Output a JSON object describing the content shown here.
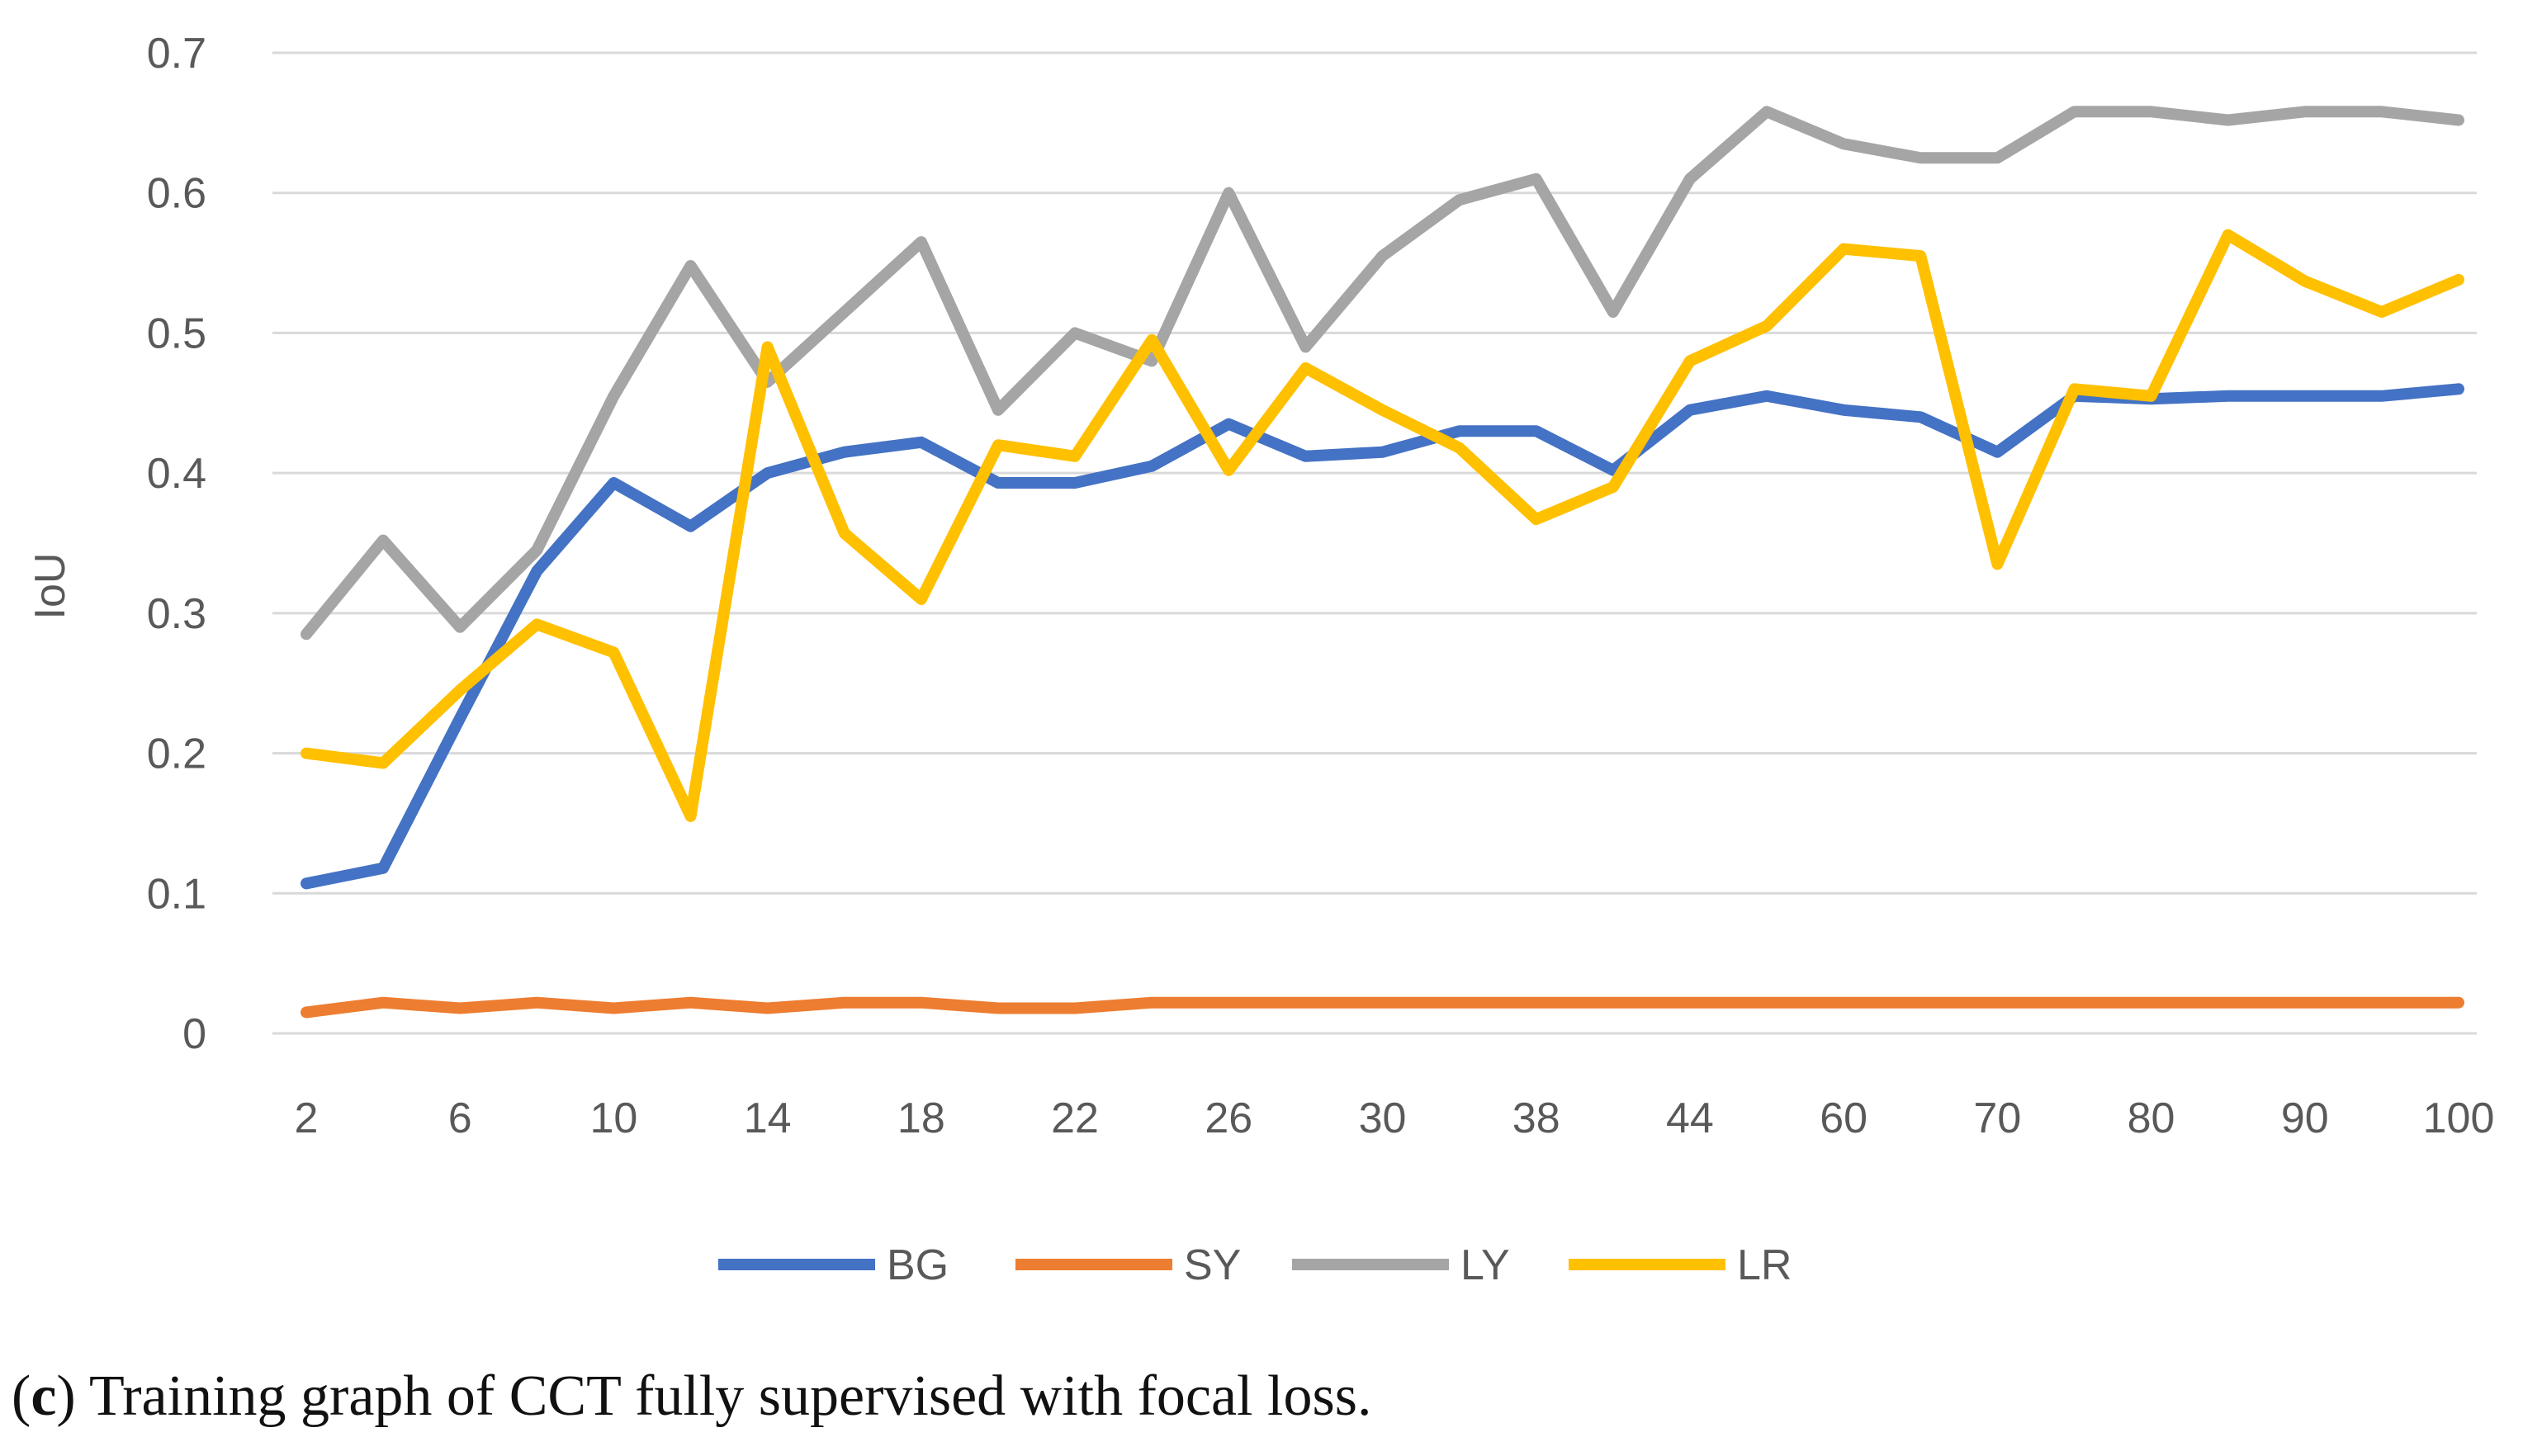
{
  "chart_data": {
    "type": "line",
    "title": "",
    "xlabel": "",
    "ylabel": "IoU",
    "ylim": [
      0,
      0.7
    ],
    "yticks": [
      "0",
      "0.1",
      "0.2",
      "0.3",
      "0.4",
      "0.5",
      "0.6",
      "0.7"
    ],
    "ytick_values": [
      0,
      0.1,
      0.2,
      0.3,
      0.4,
      0.5,
      0.6,
      0.7
    ],
    "x": [
      "2",
      "4",
      "6",
      "8",
      "10",
      "12",
      "14",
      "16",
      "18",
      "20",
      "22",
      "24",
      "26",
      "28",
      "30",
      "34",
      "38",
      "40",
      "44",
      "50",
      "60",
      "65",
      "70",
      "75",
      "80",
      "85",
      "90",
      "95",
      "100"
    ],
    "x_tick_labels": [
      "2",
      "6",
      "10",
      "14",
      "18",
      "22",
      "26",
      "30",
      "38",
      "44",
      "60",
      "70",
      "80",
      "90",
      "100"
    ],
    "grid": "horizontal",
    "legend_position": "bottom",
    "series": [
      {
        "name": "BG",
        "color": "#4472C4",
        "values": [
          0.107,
          0.118,
          0.225,
          0.33,
          0.393,
          0.362,
          0.4,
          0.415,
          0.422,
          0.393,
          0.393,
          0.405,
          0.435,
          0.412,
          0.415,
          0.43,
          0.43,
          0.402,
          0.445,
          0.455,
          0.445,
          0.44,
          0.415,
          0.455,
          0.453,
          0.455,
          0.455,
          0.455,
          0.46
        ]
      },
      {
        "name": "SY",
        "color": "#ED7D31",
        "values": [
          0.015,
          0.022,
          0.018,
          0.022,
          0.018,
          0.022,
          0.018,
          0.022,
          0.022,
          0.018,
          0.018,
          0.022,
          0.022,
          0.022,
          0.022,
          0.022,
          0.022,
          0.022,
          0.022,
          0.022,
          0.022,
          0.022,
          0.022,
          0.022,
          0.022,
          0.022,
          0.022,
          0.022,
          0.022
        ]
      },
      {
        "name": "LY",
        "color": "#A5A5A5",
        "values": [
          0.285,
          0.352,
          0.29,
          0.345,
          0.455,
          0.548,
          0.465,
          0.515,
          0.565,
          0.445,
          0.5,
          0.48,
          0.6,
          0.49,
          0.555,
          0.595,
          0.61,
          0.515,
          0.61,
          0.658,
          0.635,
          0.625,
          0.625,
          0.658,
          0.658,
          0.652,
          0.658,
          0.658,
          0.652
        ]
      },
      {
        "name": "LR",
        "color": "#FFC000",
        "values": [
          0.2,
          0.193,
          0.245,
          0.292,
          0.272,
          0.155,
          0.49,
          0.357,
          0.31,
          0.42,
          0.412,
          0.495,
          0.402,
          0.475,
          0.445,
          0.418,
          0.367,
          0.39,
          0.48,
          0.505,
          0.56,
          0.555,
          0.335,
          0.46,
          0.455,
          0.57,
          0.537,
          0.515,
          0.538
        ]
      }
    ]
  },
  "caption": {
    "label": "c",
    "text": " Training graph of CCT fully supervised with focal loss."
  }
}
